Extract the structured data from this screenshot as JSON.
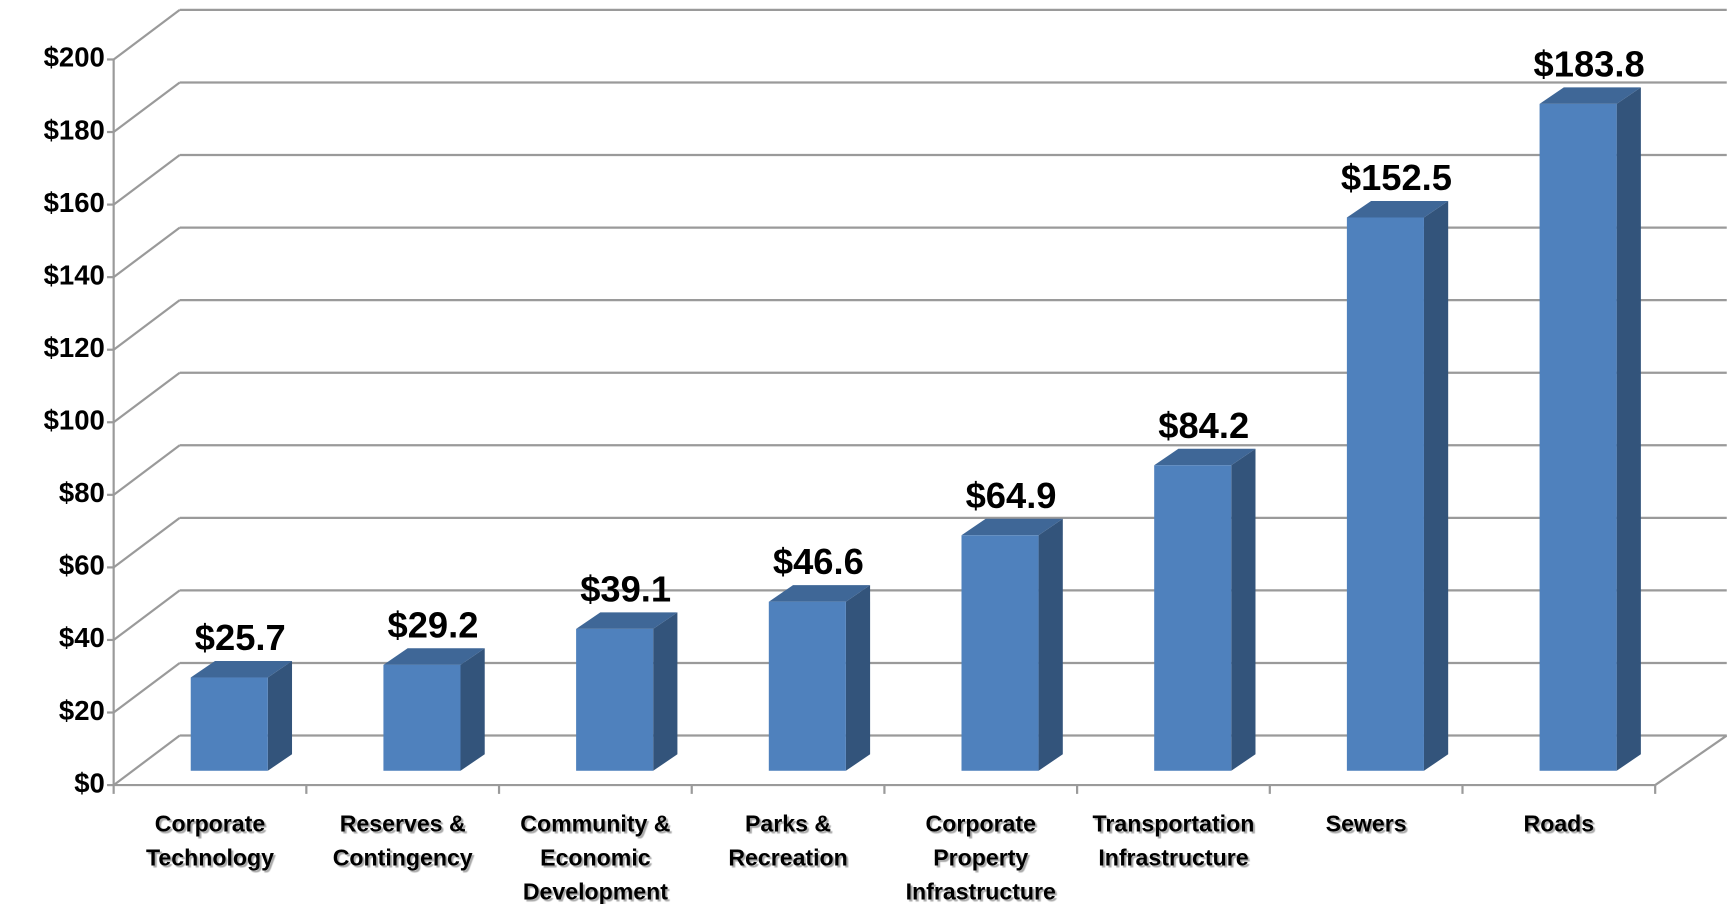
{
  "chart_data": {
    "type": "bar3d",
    "categories": [
      "Corporate\nTechnology",
      "Reserves &\nContingency",
      "Community &\nEconomic\nDevelopment",
      "Parks &\nRecreation",
      "Corporate\nProperty\nInfrastructure",
      "Transportation\nInfrastructure",
      "Sewers",
      "Roads"
    ],
    "values": [
      25.7,
      29.2,
      39.1,
      46.6,
      64.9,
      84.2,
      152.5,
      183.8
    ],
    "value_labels": [
      "$25.7",
      "$29.2",
      "$39.1",
      "$46.6",
      "$64.9",
      "$84.2",
      "$152.5",
      "$183.8"
    ],
    "color": "#4f81bd",
    "ylim": [
      0,
      200
    ],
    "yticks": [
      {
        "value": 0,
        "label": "$0"
      },
      {
        "value": 20,
        "label": "$20"
      },
      {
        "value": 40,
        "label": "$40"
      },
      {
        "value": 60,
        "label": "$60"
      },
      {
        "value": 80,
        "label": "$80"
      },
      {
        "value": 100,
        "label": "$100"
      },
      {
        "value": 120,
        "label": "$120"
      },
      {
        "value": 140,
        "label": "$140"
      },
      {
        "value": 160,
        "label": "$160"
      },
      {
        "value": 180,
        "label": "$180"
      },
      {
        "value": 200,
        "label": "$200"
      }
    ],
    "grid": true
  }
}
